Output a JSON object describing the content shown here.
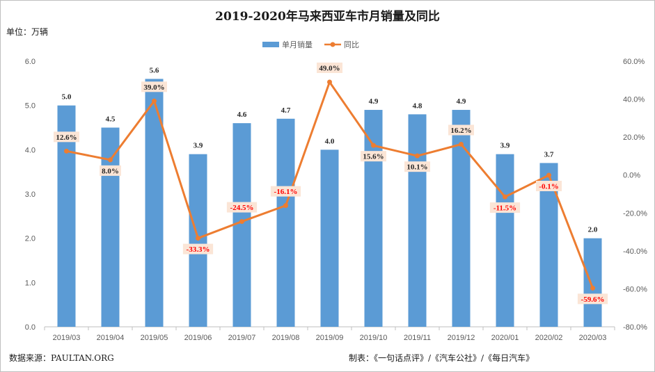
{
  "header": {
    "title": "2019-2020年马来西亚车市月销量及同比",
    "unit": "单位：万辆"
  },
  "footer": {
    "source": "数据来源：PAULTAN.ORG",
    "credit": "制表：《一句话点评》/《汽车公社》/《每日汽车》"
  },
  "colors": {
    "bar": "#5b9bd5",
    "line": "#ed7d31",
    "label_bg": "#fbe5d6",
    "negative_label": "#ff0000",
    "positive_label": "#262626"
  },
  "chart_data": {
    "type": "bar",
    "title": "2019-2020年马来西亚车市月销量及同比",
    "categories": [
      "2019/03",
      "2019/04",
      "2019/05",
      "2019/06",
      "2019/07",
      "2019/08",
      "2019/09",
      "2019/10",
      "2019/11",
      "2019/12",
      "2020/01",
      "2020/02",
      "2020/03"
    ],
    "series": [
      {
        "name": "单月销量",
        "type": "bar",
        "axis": "left",
        "values": [
          5.0,
          4.5,
          5.6,
          3.9,
          4.6,
          4.7,
          4.0,
          4.9,
          4.8,
          4.9,
          3.9,
          3.7,
          2.0
        ],
        "labels": [
          "5.0",
          "4.5",
          "5.6",
          "3.9",
          "4.6",
          "4.7",
          "4.0",
          "4.9",
          "4.8",
          "4.9",
          "3.9",
          "3.7",
          "2.0"
        ]
      },
      {
        "name": "同比",
        "type": "line",
        "axis": "right",
        "values": [
          12.6,
          8.0,
          39.0,
          -33.3,
          -24.5,
          -16.1,
          49.0,
          15.6,
          10.1,
          16.2,
          -11.5,
          -0.1,
          -59.6
        ],
        "labels": [
          "12.6%",
          "8.0%",
          "39.0%",
          "-33.3%",
          "-24.5%",
          "-16.1%",
          "49.0%",
          "15.6%",
          "10.1%",
          "16.2%",
          "-11.5%",
          "-0.1%",
          "-59.6%"
        ]
      }
    ],
    "y_left": {
      "ylim": [
        0,
        6
      ],
      "ticks": [
        "0.0",
        "1.0",
        "2.0",
        "3.0",
        "4.0",
        "5.0",
        "6.0"
      ]
    },
    "y_right": {
      "ylim": [
        -80,
        60
      ],
      "ticks": [
        "-80.0%",
        "-60.0%",
        "-40.0%",
        "-20.0%",
        "0.0%",
        "20.0%",
        "40.0%",
        "60.0%"
      ]
    },
    "grid": false,
    "legend": "top-center"
  }
}
